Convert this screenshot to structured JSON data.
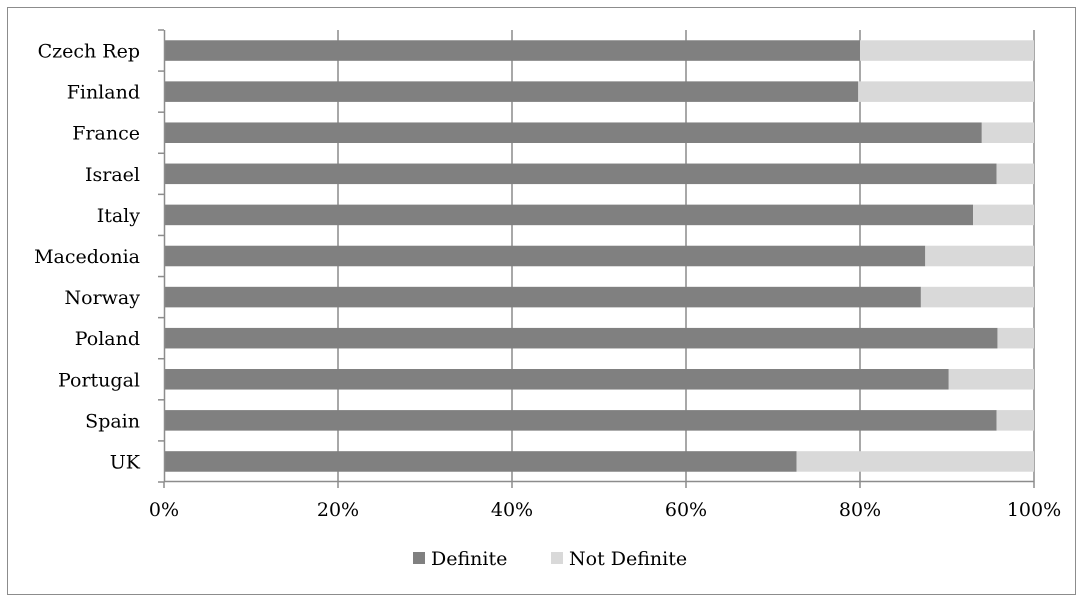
{
  "chart_data": {
    "type": "bar",
    "orientation": "horizontal",
    "stacked": "percent",
    "categories": [
      "Czech Rep",
      "Finland",
      "France",
      "Israel",
      "Italy",
      "Macedonia",
      "Norway",
      "Poland",
      "Portugal",
      "Spain",
      "UK"
    ],
    "series": [
      {
        "name": "Definite",
        "color": "#808080",
        "values": [
          80,
          79.8,
          94,
          95.7,
          93,
          87.5,
          87,
          95.8,
          90.2,
          95.7,
          72.7
        ]
      },
      {
        "name": "Not Definite",
        "color": "#d9d9d9",
        "values": [
          20,
          20.2,
          6,
          4.3,
          7,
          12.5,
          13,
          4.2,
          9.8,
          4.3,
          27.3
        ]
      }
    ],
    "xlim": [
      0,
      100
    ],
    "x_ticks": [
      "0%",
      "20%",
      "40%",
      "60%",
      "80%",
      "100%"
    ],
    "gridlines": "vertical",
    "legend_position": "bottom",
    "title": "",
    "xlabel": "",
    "ylabel": ""
  }
}
